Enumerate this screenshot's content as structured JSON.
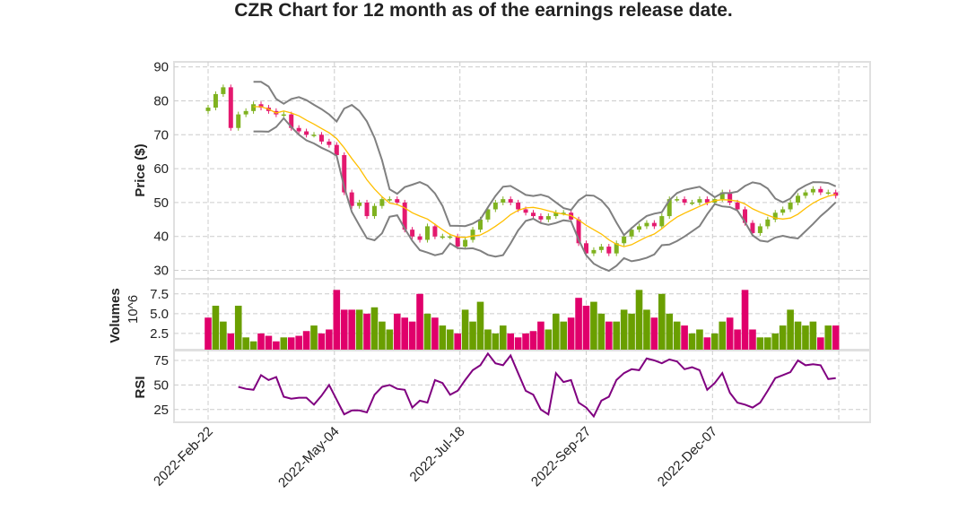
{
  "chart_data": {
    "type": "candlestick",
    "title": "CZR Chart for 12 month as of the earnings release date.",
    "x_tick_labels": [
      "2022-Feb-22",
      "2022-May-04",
      "2022-Jul-18",
      "2022-Sep-27",
      "2022-Dec-07"
    ],
    "grid": true,
    "colors": {
      "up": "#7fb21f",
      "down": "#e4196f",
      "vol_up": "#6a9f00",
      "vol_down": "#e0006b",
      "ma": "#ffbf00",
      "bands": "#808080",
      "rsi": "#800080"
    },
    "price_panel": {
      "ylabel": "Price ($)",
      "yticks": [
        30,
        40,
        50,
        60,
        70,
        80,
        90
      ],
      "ylim": [
        27.5,
        91.5
      ],
      "indicators": [
        "moving average (20)",
        "bollinger bands (20, 2)"
      ],
      "close": [
        78,
        82,
        84,
        72,
        76,
        77,
        79,
        78,
        77,
        76,
        76,
        72,
        71,
        70,
        70,
        68,
        67,
        64,
        53,
        49,
        50,
        46,
        49,
        51,
        51,
        50,
        42,
        40,
        39,
        43,
        40,
        40,
        40,
        37,
        39,
        42,
        45,
        48,
        50,
        51,
        50,
        48,
        47,
        46,
        45,
        46,
        47,
        47,
        45,
        38,
        35,
        36,
        37,
        35,
        38,
        40,
        42,
        43,
        44,
        43,
        46,
        51,
        51,
        50,
        50,
        51,
        50,
        51,
        53,
        50,
        48,
        44,
        41,
        43,
        45,
        47,
        48,
        50,
        52,
        53,
        54,
        53,
        53,
        52
      ]
    },
    "volume_panel": {
      "ylabel": "Volumes",
      "unit_label": "10^6",
      "yticks": [
        2.5,
        5.0,
        7.5
      ],
      "ytick_labels": [
        "2.5",
        "5.0",
        "7.5"
      ],
      "ylim": [
        0.45,
        9.4
      ],
      "values": [
        4.5,
        6.0,
        4.0,
        2.5,
        6.0,
        2.0,
        1.5,
        2.5,
        2.2,
        1.5,
        2.0,
        2.0,
        2.2,
        2.8,
        3.5,
        2.5,
        3.0,
        8.0,
        5.5,
        5.5,
        5.5,
        5.0,
        5.8,
        4.0,
        3.0,
        5.0,
        4.5,
        4.0,
        7.5,
        5.0,
        4.5,
        3.5,
        3.0,
        2.5,
        5.5,
        4.0,
        6.5,
        3.0,
        2.5,
        3.5,
        2.5,
        2.0,
        2.5,
        2.8,
        4.0,
        3.0,
        5.0,
        4.0,
        4.5,
        7.0,
        6.0,
        6.5,
        5.0,
        4.0,
        4.0,
        5.5,
        5.0,
        8.0,
        5.5,
        4.5,
        7.5,
        5.0,
        4.0,
        3.5,
        2.5,
        3.0,
        2.0,
        2.5,
        4.0,
        4.5,
        3.0,
        8.0,
        3.0,
        2.0,
        2.0,
        2.5,
        3.5,
        5.5,
        4.0,
        3.5,
        4.0,
        2.0,
        3.5,
        3.5
      ]
    },
    "rsi_panel": {
      "ylabel": "RSI",
      "yticks": [
        25,
        50,
        75
      ],
      "ylim": [
        12,
        85
      ],
      "values": [
        null,
        null,
        null,
        null,
        48,
        46,
        45,
        60,
        55,
        58,
        38,
        36,
        37,
        37,
        30,
        39,
        50,
        35,
        20,
        24,
        24,
        22,
        40,
        48,
        50,
        46,
        45,
        27,
        34,
        32,
        55,
        52,
        40,
        44,
        55,
        65,
        70,
        82,
        72,
        70,
        80,
        62,
        44,
        40,
        25,
        20,
        62,
        53,
        55,
        32,
        27,
        18,
        34,
        38,
        55,
        62,
        66,
        65,
        77,
        75,
        72,
        76,
        74,
        66,
        68,
        65,
        45,
        52,
        62,
        42,
        32,
        30,
        27,
        32,
        44,
        57,
        60,
        63,
        75,
        70,
        71,
        70,
        56,
        57
      ]
    }
  }
}
